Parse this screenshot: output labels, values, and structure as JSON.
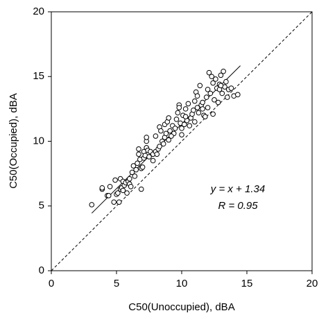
{
  "chart_data": {
    "type": "scatter",
    "xlabel": "C50(Unoccupied), dBA",
    "ylabel": "C50(Occupied), dBA",
    "annotations": [
      "y = x + 1.34",
      "R = 0.95"
    ],
    "xlim": [
      0,
      20
    ],
    "ylim": [
      0,
      20
    ],
    "xticks": [
      0,
      5,
      10,
      15,
      20
    ],
    "yticks": [
      0,
      5,
      10,
      15,
      20
    ],
    "color": "#000000",
    "x": [
      3.1,
      3.9,
      3.9,
      4.3,
      4.5,
      4.4,
      4.8,
      4.9,
      5.0,
      5.1,
      5.2,
      5.3,
      5.3,
      5.4,
      5.5,
      5.5,
      5.6,
      5.7,
      5.8,
      5.9,
      6.0,
      6.0,
      6.2,
      6.3,
      6.4,
      6.5,
      6.6,
      6.7,
      6.7,
      6.8,
      6.9,
      6.9,
      7.0,
      7.1,
      7.1,
      7.2,
      7.3,
      7.3,
      7.3,
      7.4,
      7.5,
      7.6,
      7.8,
      7.8,
      8.0,
      8.0,
      8.2,
      8.3,
      8.3,
      8.4,
      8.5,
      8.6,
      8.7,
      8.7,
      8.8,
      8.9,
      9.0,
      9.0,
      9.1,
      9.3,
      9.4,
      9.5,
      9.6,
      9.7,
      9.8,
      9.8,
      9.9,
      10.0,
      10.0,
      10.1,
      10.2,
      10.3,
      10.4,
      10.5,
      10.6,
      10.7,
      10.8,
      10.9,
      11.0,
      11.0,
      11.1,
      11.2,
      11.2,
      11.3,
      11.4,
      11.5,
      11.6,
      11.7,
      11.8,
      11.9,
      12.0,
      12.0,
      12.1,
      12.2,
      12.3,
      12.4,
      12.5,
      12.6,
      12.7,
      12.8,
      12.9,
      13.0,
      13.1,
      13.2,
      13.3,
      13.4,
      13.5,
      13.6,
      13.8,
      14.0,
      14.3,
      12.9,
      11.6,
      10.3,
      9.2,
      8.1,
      6.1,
      12.4,
      13.0
    ],
    "values": [
      5.1,
      6.3,
      6.4,
      5.8,
      6.5,
      5.8,
      5.3,
      7.0,
      5.9,
      6.0,
      5.3,
      7.1,
      6.3,
      6.4,
      6.9,
      6.2,
      6.6,
      6.8,
      6.0,
      6.9,
      7.1,
      6.7,
      7.6,
      8.1,
      7.3,
      7.8,
      8.3,
      9.0,
      9.4,
      8.6,
      7.9,
      6.3,
      8.0,
      8.7,
      9.2,
      8.9,
      9.5,
      10.0,
      10.3,
      9.3,
      8.8,
      9.2,
      9.0,
      8.5,
      9.2,
      10.4,
      9.4,
      9.6,
      11.1,
      10.8,
      10.0,
      9.8,
      10.3,
      11.3,
      10.6,
      11.5,
      10.1,
      11.8,
      10.8,
      11.2,
      10.6,
      11.0,
      11.7,
      12.2,
      12.8,
      12.6,
      11.4,
      11.0,
      10.5,
      12.0,
      11.3,
      12.5,
      11.6,
      12.9,
      11.2,
      11.8,
      12.1,
      12.4,
      13.1,
      11.5,
      13.8,
      12.6,
      13.5,
      12.2,
      14.3,
      12.8,
      13.0,
      12.0,
      11.9,
      13.4,
      14.0,
      12.6,
      15.3,
      13.7,
      15.0,
      14.5,
      13.2,
      14.8,
      14.1,
      13.0,
      14.4,
      15.1,
      13.7,
      15.4,
      14.2,
      14.6,
      13.4,
      14.0,
      14.1,
      13.5,
      13.6,
      14.0,
      12.5,
      11.9,
      10.4,
      9.0,
      6.5,
      12.1,
      14.3
    ],
    "lines": [
      {
        "x": [
          3.1,
          14.5
        ],
        "values": [
          4.44,
          15.84
        ],
        "color": "#000000",
        "dashed": false
      },
      {
        "x": [
          0,
          20
        ],
        "values": [
          0,
          20
        ],
        "color": "#000000",
        "dashed": true
      }
    ]
  }
}
